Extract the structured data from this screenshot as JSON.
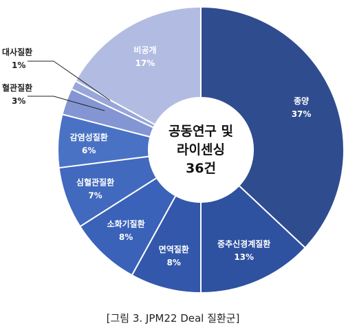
{
  "chart_data": {
    "type": "pie",
    "style": "donut",
    "center_label": [
      "공동연구 및",
      "라이센싱",
      "36건"
    ],
    "slices": [
      {
        "name": "종양",
        "pct_label": "37%",
        "value": 37,
        "color": "#2f4c8f"
      },
      {
        "name": "중추신경계질환",
        "pct_label": "13%",
        "value": 13,
        "color": "#2e51a0"
      },
      {
        "name": "면역질환",
        "pct_label": "8%",
        "value": 8,
        "color": "#3358ab"
      },
      {
        "name": "소화기질환",
        "pct_label": "8%",
        "value": 8,
        "color": "#3a62b8"
      },
      {
        "name": "심혈관질환",
        "pct_label": "7%",
        "value": 7,
        "color": "#4169be"
      },
      {
        "name": "감염성질환",
        "pct_label": "6%",
        "value": 6,
        "color": "#4a72c4"
      },
      {
        "name": "혈관질환",
        "pct_label": "3%",
        "value": 3,
        "color": "#8495d3"
      },
      {
        "name": "대사질환",
        "pct_label": "1%",
        "value": 1,
        "color": "#98a6d9"
      },
      {
        "name": "비공개",
        "pct_label": "17%",
        "value": 17,
        "color": "#b2bce3"
      }
    ]
  },
  "caption": "[그림 3. JPM22 Deal 질환군]"
}
